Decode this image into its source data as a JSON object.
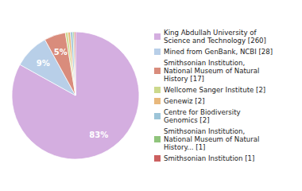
{
  "chart_data": {
    "type": "pie",
    "categories": [
      "King Abdullah University of\nScience and Technology [260]",
      "Mined from GenBank, NCBI [28]",
      "Smithsonian Institution,\nNational Museum of Natural\nHistory [17]",
      "Wellcome Sanger Institute [2]",
      "Genewiz [2]",
      "Centre for Biodiversity\nGenomics [2]",
      "Smithsonian Institution,\nNational Museum of Natural\nHistory... [1]",
      "Smithsonian Institution [1]"
    ],
    "values": [
      83.07,
      8.95,
      5.43,
      0.64,
      0.64,
      0.64,
      0.32,
      0.32
    ],
    "value_labels": [
      "83%",
      "9%",
      "5%",
      null,
      null,
      null,
      null,
      null
    ],
    "colors": [
      "#d4aee0",
      "#b8cfe8",
      "#d98c7c",
      "#ccd98c",
      "#e8b87c",
      "#9cc4d8",
      "#90c47c",
      "#cc6060"
    ],
    "data_labels": true,
    "legend": "right"
  }
}
